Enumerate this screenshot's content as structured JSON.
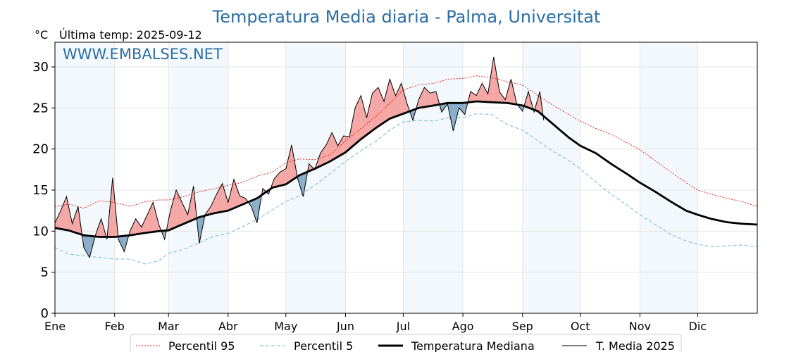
{
  "header": {
    "title": "Temperatura Media diaria - Palma, Universitat",
    "unit": "°C",
    "last_temp": "Última temp: 2025-09-12",
    "watermark": "WWW.EMBALSES.NET"
  },
  "colors": {
    "title": "#2b6ea6",
    "p95": "#e8251c",
    "p5": "#8cc8dc",
    "median": "#000000",
    "current": "#000000",
    "above": "#f5a7a5",
    "below": "#8aaec9",
    "band": "#f3f8fc"
  },
  "chart_data": {
    "type": "line",
    "title": "Temperatura Media diaria - Palma, Universitat",
    "ylabel": "°C",
    "ylim": [
      0,
      33
    ],
    "xlim": [
      1,
      366
    ],
    "yticks": [
      0,
      5,
      10,
      15,
      20,
      25,
      30
    ],
    "grid": true,
    "legend_position": "bottom",
    "months": [
      "Ene",
      "Feb",
      "Mar",
      "Abr",
      "May",
      "Jun",
      "Jul",
      "Ago",
      "Sep",
      "Oct",
      "Nov",
      "Dic"
    ],
    "month_start_day": [
      1,
      32,
      60,
      91,
      121,
      152,
      182,
      213,
      244,
      274,
      305,
      335
    ],
    "series": [
      {
        "name": "Percentil 95",
        "style": "dotted",
        "x": [
          1,
          8,
          16,
          24,
          32,
          40,
          48,
          55,
          60,
          68,
          76,
          84,
          91,
          98,
          106,
          114,
          121,
          128,
          136,
          144,
          152,
          160,
          168,
          175,
          182,
          190,
          198,
          205,
          213,
          220,
          228,
          236,
          244,
          252,
          260,
          268,
          274,
          282,
          290,
          298,
          305,
          313,
          321,
          329,
          335,
          342,
          350,
          358,
          366
        ],
        "values": [
          13.0,
          13.3,
          12.8,
          13.7,
          13.5,
          13.0,
          13.6,
          13.8,
          13.8,
          14.2,
          14.8,
          15.2,
          15.6,
          15.9,
          16.7,
          17.2,
          18.3,
          18.8,
          18.7,
          19.3,
          21.0,
          22.5,
          24.0,
          25.6,
          27.2,
          27.8,
          28.0,
          28.5,
          28.6,
          28.9,
          28.7,
          28.2,
          27.8,
          26.5,
          25.3,
          24.2,
          23.4,
          22.5,
          21.8,
          20.8,
          19.9,
          18.6,
          17.2,
          15.9,
          15.0,
          14.5,
          14.0,
          13.6,
          13.0
        ]
      },
      {
        "name": "Percentil 5",
        "style": "dashed",
        "x": [
          1,
          8,
          16,
          24,
          32,
          40,
          48,
          55,
          60,
          68,
          76,
          84,
          91,
          98,
          106,
          114,
          121,
          128,
          136,
          144,
          152,
          160,
          168,
          175,
          182,
          190,
          198,
          205,
          213,
          220,
          228,
          236,
          244,
          252,
          260,
          268,
          274,
          282,
          290,
          298,
          305,
          313,
          321,
          329,
          335,
          342,
          350,
          358,
          366
        ],
        "values": [
          8.0,
          7.2,
          7.0,
          6.8,
          6.6,
          6.6,
          6.0,
          6.4,
          7.3,
          7.8,
          8.6,
          9.4,
          9.7,
          10.5,
          11.4,
          12.6,
          13.6,
          14.3,
          15.6,
          17.0,
          18.5,
          19.8,
          21.0,
          22.3,
          23.3,
          23.5,
          23.4,
          23.8,
          23.8,
          24.3,
          24.2,
          23.0,
          22.3,
          21.0,
          19.7,
          18.6,
          17.6,
          16.0,
          14.5,
          13.2,
          12.0,
          10.8,
          9.6,
          8.8,
          8.4,
          8.1,
          8.2,
          8.3,
          8.1
        ]
      },
      {
        "name": "Temperatura Mediana",
        "style": "bold",
        "x": [
          1,
          8,
          16,
          24,
          32,
          40,
          48,
          55,
          60,
          68,
          76,
          84,
          91,
          98,
          106,
          114,
          121,
          128,
          136,
          144,
          152,
          160,
          168,
          175,
          182,
          190,
          198,
          205,
          213,
          220,
          228,
          236,
          244,
          252,
          260,
          268,
          274,
          282,
          290,
          298,
          305,
          313,
          321,
          329,
          335,
          342,
          350,
          358,
          366
        ],
        "values": [
          10.4,
          10.1,
          9.5,
          9.3,
          9.3,
          9.5,
          9.8,
          10.0,
          10.1,
          10.9,
          11.7,
          12.2,
          12.5,
          13.2,
          14.0,
          15.3,
          15.7,
          16.8,
          17.6,
          18.5,
          19.6,
          21.2,
          22.6,
          23.7,
          24.3,
          25.0,
          25.3,
          25.6,
          25.6,
          25.8,
          25.7,
          25.6,
          25.3,
          24.6,
          23.0,
          21.4,
          20.4,
          19.5,
          18.2,
          17.0,
          15.9,
          14.8,
          13.6,
          12.5,
          12.0,
          11.5,
          11.1,
          10.9,
          10.8
        ]
      },
      {
        "name": "T. Media 2025",
        "style": "thin",
        "x": [
          1,
          4,
          7,
          10,
          13,
          16,
          19,
          22,
          25,
          28,
          31,
          34,
          37,
          40,
          43,
          46,
          49,
          52,
          55,
          58,
          61,
          64,
          67,
          70,
          73,
          76,
          79,
          82,
          85,
          88,
          91,
          94,
          97,
          100,
          103,
          106,
          109,
          112,
          115,
          118,
          121,
          124,
          127,
          130,
          133,
          136,
          139,
          142,
          145,
          148,
          151,
          154,
          157,
          160,
          163,
          166,
          169,
          172,
          175,
          178,
          181,
          184,
          187,
          190,
          193,
          196,
          199,
          202,
          205,
          208,
          211,
          214,
          217,
          220,
          223,
          226,
          229,
          232,
          235,
          238,
          241,
          244,
          247,
          250,
          253,
          255
        ],
        "values": [
          11.0,
          12.5,
          14.2,
          10.9,
          13.0,
          8.0,
          6.8,
          9.5,
          11.5,
          9.0,
          16.5,
          9.0,
          7.5,
          10.0,
          11.5,
          10.5,
          12.0,
          13.5,
          10.8,
          9.0,
          12.5,
          15.0,
          13.5,
          12.0,
          15.5,
          8.5,
          12.0,
          13.0,
          14.5,
          15.8,
          13.5,
          16.3,
          14.3,
          14.0,
          13.0,
          11.0,
          15.2,
          14.5,
          16.4,
          17.2,
          17.6,
          20.5,
          16.5,
          14.2,
          18.2,
          17.5,
          19.5,
          20.5,
          22.0,
          20.4,
          21.6,
          21.5,
          25.0,
          26.5,
          23.8,
          26.8,
          27.5,
          25.8,
          28.5,
          26.5,
          28.0,
          25.5,
          23.5,
          26.0,
          27.5,
          26.8,
          27.0,
          24.5,
          25.5,
          22.2,
          25.0,
          24.2,
          27.0,
          26.5,
          28.0,
          26.7,
          31.2,
          27.0,
          26.0,
          28.5,
          25.5,
          24.6,
          27.0,
          24.5,
          27.0,
          23.5
        ]
      }
    ]
  }
}
